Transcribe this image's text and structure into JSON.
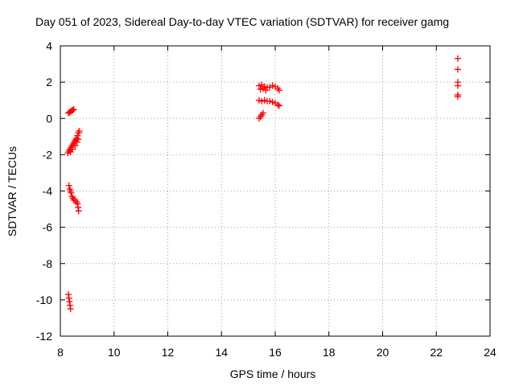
{
  "chart_data": {
    "type": "scatter",
    "title": "Day 051 of 2023, Sidereal Day-to-day VTEC variation (SDTVAR) for receiver gamg",
    "xlabel": "GPS time / hours",
    "ylabel": "SDTVAR / TECUs",
    "xlim": [
      8,
      24
    ],
    "ylim": [
      -12,
      4
    ],
    "xticks": [
      "8",
      "10",
      "12",
      "14",
      "16",
      "18",
      "20",
      "22",
      "24"
    ],
    "yticks": [
      "4",
      "2",
      "0",
      "-2",
      "-4",
      "-6",
      "-8",
      "-10",
      "-12"
    ],
    "grid": true,
    "legend": "none",
    "marker": "+",
    "color": "#ff0000",
    "series": [
      {
        "points": [
          [
            8.3,
            0.3
          ],
          [
            8.34,
            0.34
          ],
          [
            8.38,
            0.38
          ],
          [
            8.42,
            0.42
          ],
          [
            8.46,
            0.46
          ],
          [
            8.5,
            0.5
          ],
          [
            8.28,
            -1.9
          ],
          [
            8.32,
            -1.8
          ],
          [
            8.36,
            -1.7
          ],
          [
            8.4,
            -1.6
          ],
          [
            8.44,
            -1.5
          ],
          [
            8.48,
            -1.4
          ],
          [
            8.52,
            -1.3
          ],
          [
            8.56,
            -1.2
          ],
          [
            8.6,
            -1.1
          ],
          [
            8.64,
            -0.95
          ],
          [
            8.68,
            -0.8
          ],
          [
            8.7,
            -0.7
          ],
          [
            8.38,
            -1.85
          ],
          [
            8.45,
            -1.7
          ],
          [
            8.55,
            -1.5
          ],
          [
            8.62,
            -1.3
          ],
          [
            8.66,
            -1.15
          ],
          [
            8.32,
            -3.7
          ],
          [
            8.35,
            -3.9
          ],
          [
            8.38,
            -4.0
          ],
          [
            8.4,
            -4.1
          ],
          [
            8.43,
            -4.3
          ],
          [
            8.46,
            -4.4
          ],
          [
            8.5,
            -4.5
          ],
          [
            8.55,
            -4.5
          ],
          [
            8.6,
            -4.6
          ],
          [
            8.64,
            -4.7
          ],
          [
            8.66,
            -4.9
          ],
          [
            8.68,
            -5.1
          ],
          [
            8.3,
            -9.7
          ],
          [
            8.32,
            -9.9
          ],
          [
            8.34,
            -10.1
          ],
          [
            8.36,
            -10.3
          ],
          [
            8.38,
            -10.5
          ],
          [
            15.4,
            1.8
          ],
          [
            15.5,
            1.85
          ],
          [
            15.6,
            1.75
          ],
          [
            15.7,
            1.7
          ],
          [
            15.8,
            1.72
          ],
          [
            15.9,
            1.8
          ],
          [
            16.0,
            1.75
          ],
          [
            16.1,
            1.65
          ],
          [
            16.15,
            1.55
          ],
          [
            15.45,
            1.6
          ],
          [
            15.55,
            1.65
          ],
          [
            15.65,
            1.55
          ],
          [
            15.4,
            1.0
          ],
          [
            15.5,
            0.95
          ],
          [
            15.6,
            1.0
          ],
          [
            15.7,
            0.95
          ],
          [
            15.8,
            0.95
          ],
          [
            15.9,
            0.9
          ],
          [
            16.0,
            0.85
          ],
          [
            16.1,
            0.75
          ],
          [
            16.15,
            0.7
          ],
          [
            15.4,
            0.0
          ],
          [
            15.45,
            0.1
          ],
          [
            15.5,
            0.2
          ],
          [
            15.55,
            0.3
          ],
          [
            22.8,
            3.3
          ],
          [
            22.8,
            2.7
          ],
          [
            22.8,
            2.0
          ],
          [
            22.8,
            1.8
          ],
          [
            22.8,
            1.3
          ],
          [
            22.8,
            1.2
          ]
        ]
      }
    ]
  }
}
